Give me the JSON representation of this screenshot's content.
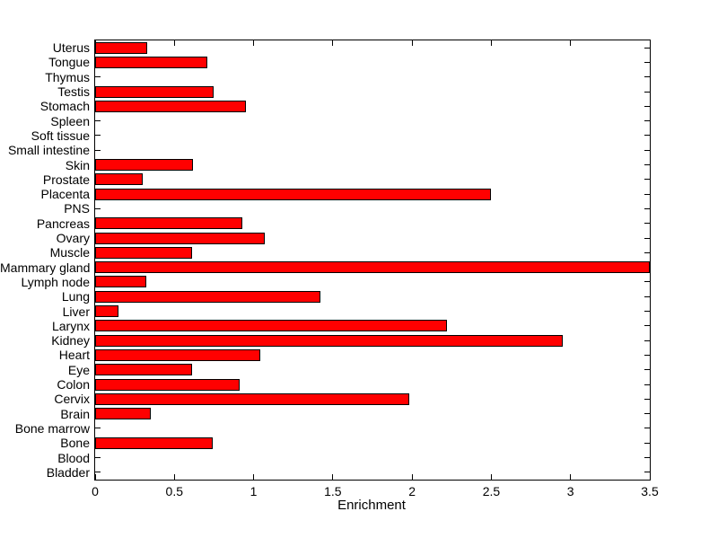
{
  "figure": {
    "background_color": "#ffffff",
    "axis_color": "#000000"
  },
  "chart_data": {
    "type": "bar",
    "orientation": "horizontal",
    "title": "",
    "xlabel": "Enrichment",
    "ylabel": "",
    "xlim": [
      0,
      3.5
    ],
    "xticks": [
      0,
      0.5,
      1,
      1.5,
      2,
      2.5,
      3,
      3.5
    ],
    "xtick_labels": [
      "0",
      "0.5",
      "1",
      "1.5",
      "2",
      "2.5",
      "3",
      "3.5"
    ],
    "grid": false,
    "legend": null,
    "bar_color": "#ff0000",
    "bar_edge_color": "#000000",
    "categories_order": "top-to-bottom",
    "categories": [
      "Uterus",
      "Tongue",
      "Thymus",
      "Testis",
      "Stomach",
      "Spleen",
      "Soft tissue",
      "Small intestine",
      "Skin",
      "Prostate",
      "Placenta",
      "PNS",
      "Pancreas",
      "Ovary",
      "Muscle",
      "Mammary gland",
      "Lymph node",
      "Lung",
      "Liver",
      "Larynx",
      "Kidney",
      "Heart",
      "Eye",
      "Colon",
      "Cervix",
      "Brain",
      "Bone marrow",
      "Bone",
      "Blood",
      "Bladder"
    ],
    "values": [
      0.33,
      0.71,
      0,
      0.75,
      0.95,
      0,
      0,
      0,
      0.62,
      0.3,
      2.5,
      0,
      0.93,
      1.07,
      0.61,
      3.5,
      0.32,
      1.42,
      0.15,
      2.22,
      2.95,
      1.04,
      0.61,
      0.91,
      1.98,
      0.35,
      0,
      0.74,
      0,
      0
    ]
  }
}
